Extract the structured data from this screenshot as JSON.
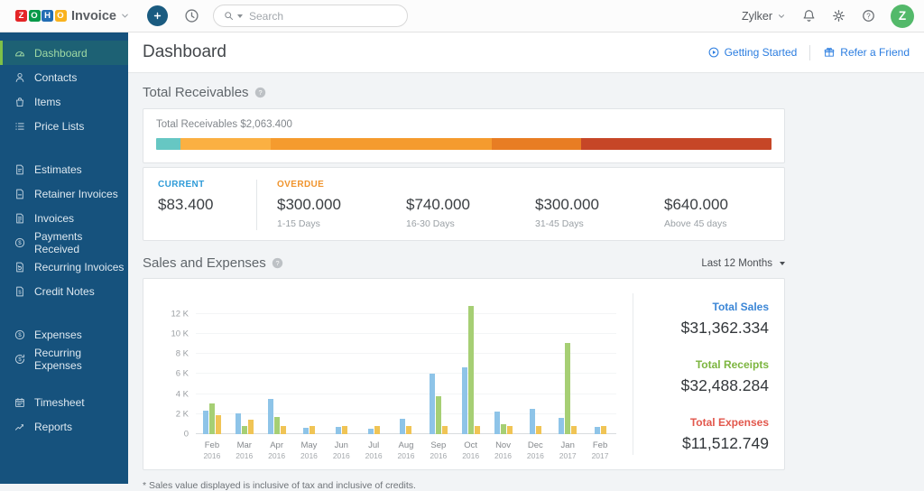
{
  "topbar": {
    "logo_tiles": [
      {
        "letter": "Z",
        "color": "#e42527"
      },
      {
        "letter": "O",
        "color": "#089949"
      },
      {
        "letter": "H",
        "color": "#226db4"
      },
      {
        "letter": "O",
        "color": "#f9b21d"
      }
    ],
    "product": "Invoice",
    "search_placeholder": "Search",
    "user_name": "Zylker",
    "avatar_letter": "Z",
    "avatar_color": "#53b96a"
  },
  "sidebar": {
    "groups": [
      {
        "items": [
          {
            "label": "Dashboard",
            "icon": "gauge",
            "active": true
          },
          {
            "label": "Contacts",
            "icon": "person",
            "active": false
          },
          {
            "label": "Items",
            "icon": "bag",
            "active": false
          },
          {
            "label": "Price Lists",
            "icon": "list",
            "active": false
          }
        ]
      },
      {
        "items": [
          {
            "label": "Estimates",
            "icon": "doc-est",
            "active": false
          },
          {
            "label": "Retainer Invoices",
            "icon": "doc-ret",
            "active": false
          },
          {
            "label": "Invoices",
            "icon": "doc-inv",
            "active": false
          },
          {
            "label": "Payments Received",
            "icon": "dollar-circle",
            "active": false
          },
          {
            "label": "Recurring Invoices",
            "icon": "doc-rec",
            "active": false
          },
          {
            "label": "Credit Notes",
            "icon": "doc-credit",
            "active": false
          }
        ]
      },
      {
        "items": [
          {
            "label": "Expenses",
            "icon": "dollar-circle",
            "active": false
          },
          {
            "label": "Recurring Expenses",
            "icon": "dollar-refresh",
            "active": false
          }
        ]
      },
      {
        "items": [
          {
            "label": "Timesheet",
            "icon": "calendar",
            "active": false
          },
          {
            "label": "Reports",
            "icon": "trend",
            "active": false
          }
        ]
      }
    ]
  },
  "header": {
    "title": "Dashboard",
    "links": [
      {
        "label": "Getting Started",
        "icon": "play-circle"
      },
      {
        "label": "Refer a Friend",
        "icon": "gift"
      }
    ]
  },
  "receivables": {
    "section_title": "Total Receivables",
    "summary_label": "Total Receivables $2,063.400",
    "segments": [
      {
        "pct": 4.0,
        "color": "#66c7c3"
      },
      {
        "pct": 14.6,
        "color": "#fbb042"
      },
      {
        "pct": 35.9,
        "color": "#f59b2e"
      },
      {
        "pct": 14.5,
        "color": "#e87d23"
      },
      {
        "pct": 31.0,
        "color": "#c64627"
      }
    ],
    "aging": [
      {
        "label": "CURRENT",
        "label_color": "#2e9bd8",
        "value": "$83.400",
        "sub": ""
      },
      {
        "label": "OVERDUE",
        "label_color": "#f0942d",
        "value": "$300.000",
        "sub": "1-15 Days"
      },
      {
        "label": "",
        "label_color": "",
        "value": "$740.000",
        "sub": "16-30 Days"
      },
      {
        "label": "",
        "label_color": "",
        "value": "$300.000",
        "sub": "31-45 Days"
      },
      {
        "label": "",
        "label_color": "",
        "value": "$640.000",
        "sub": "Above 45 days"
      }
    ]
  },
  "sales": {
    "section_title": "Sales and Expenses",
    "range_label": "Last 12 Months",
    "totals": [
      {
        "label": "Total Sales",
        "value": "$31,362.334",
        "color": "#3b86d6"
      },
      {
        "label": "Total Receipts",
        "value": "$32,488.284",
        "color": "#7cb53f"
      },
      {
        "label": "Total Expenses",
        "value": "$11,512.749",
        "color": "#e2574c"
      }
    ]
  },
  "chart_data": {
    "type": "bar",
    "title": "Sales and Expenses",
    "x": [
      "Feb 2016",
      "Mar 2016",
      "Apr 2016",
      "May 2016",
      "Jun 2016",
      "Jul 2016",
      "Aug 2016",
      "Sep 2016",
      "Oct 2016",
      "Nov 2016",
      "Dec 2016",
      "Jan 2017",
      "Feb 2017"
    ],
    "series": [
      {
        "name": "Sales",
        "color": "#8ec4e8",
        "values": [
          2300,
          2100,
          3500,
          600,
          750,
          550,
          1500,
          6050,
          6650,
          2250,
          2550,
          1650,
          700
        ]
      },
      {
        "name": "Receipts",
        "color": "#a6cf74",
        "values": [
          3100,
          850,
          1750,
          0,
          0,
          0,
          0,
          3800,
          12800,
          1000,
          0,
          9050,
          0
        ]
      },
      {
        "name": "Expenses",
        "color": "#f0c455",
        "values": [
          1850,
          1400,
          800,
          800,
          800,
          800,
          800,
          800,
          800,
          800,
          800,
          800,
          800
        ]
      }
    ],
    "ymax": 13500,
    "yticks": [
      {
        "v": 0,
        "label": "0"
      },
      {
        "v": 2000,
        "label": "2 K"
      },
      {
        "v": 4000,
        "label": "4 K"
      },
      {
        "v": 6000,
        "label": "6 K"
      },
      {
        "v": 8000,
        "label": "8 K"
      },
      {
        "v": 10000,
        "label": "10 K"
      },
      {
        "v": 12000,
        "label": "12 K"
      }
    ],
    "grid": true,
    "legend": false
  },
  "footnote": "* Sales value displayed is inclusive of tax and inclusive of credits."
}
